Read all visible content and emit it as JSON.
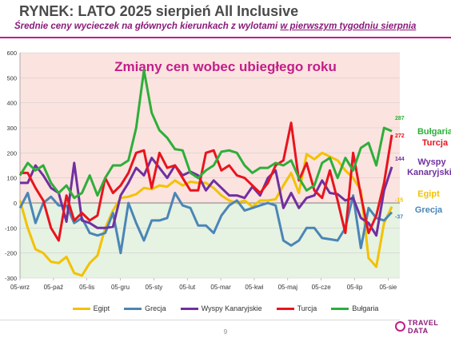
{
  "header": {
    "title": "RYNEK: LATO 2025 sierpień All Inclusive",
    "subtitle_prefix": "Średnie ceny wycieczek na głównych kierunkach z wylotami ",
    "subtitle_underlined": "w pierwszym tygodniu sierpnia"
  },
  "footer": {
    "page_number": "9",
    "logo_line1": "TRAVEL",
    "logo_line2": "DATA"
  },
  "colors": {
    "Egipt": "#f2c200",
    "Grecja": "#4a86b6",
    "Wyspy Kanaryjskie": "#7030a0",
    "Turcja": "#e8141e",
    "Bułgaria": "#2eae3a",
    "positive_bg": "#fbe3df",
    "negative_bg": "#e6f2e2",
    "title": "#c21e8a"
  },
  "chart_data": {
    "type": "line",
    "title": "Zmiany cen wobec ubiegłego roku",
    "xlabel": "",
    "ylabel": "",
    "ylim": [
      -300,
      600
    ],
    "yticks": [
      -300,
      -200,
      -100,
      0,
      100,
      200,
      300,
      400,
      500,
      600
    ],
    "x_tick_labels": [
      "05-wrz",
      "05-paź",
      "05-lis",
      "05-gru",
      "05-sty",
      "05-lut",
      "05-mar",
      "05-kwi",
      "05-maj",
      "05-cze",
      "05-lip",
      "05-sie"
    ],
    "grid": true,
    "legend_position": "bottom",
    "series": [
      {
        "name": "Egipt",
        "end_label": "-15",
        "side_label": "Egipt",
        "values": [
          10,
          -100,
          -185,
          -200,
          -235,
          -240,
          -215,
          -280,
          -290,
          -240,
          -210,
          -100,
          -30,
          20,
          25,
          35,
          60,
          55,
          70,
          65,
          90,
          70,
          85,
          80,
          80,
          60,
          30,
          10,
          0,
          10,
          -15,
          10,
          10,
          15,
          70,
          120,
          40,
          195,
          175,
          200,
          185,
          170,
          130,
          100,
          50,
          -220,
          -255,
          -80,
          -15
        ]
      },
      {
        "name": "Grecja",
        "end_label": "-37",
        "side_label": "Grecja",
        "values": [
          -20,
          40,
          -80,
          0,
          25,
          -10,
          -10,
          -80,
          -60,
          -120,
          -130,
          -120,
          -40,
          -200,
          0,
          -80,
          -150,
          -70,
          -70,
          -60,
          40,
          -10,
          -20,
          -90,
          -90,
          -120,
          -50,
          -10,
          10,
          -30,
          -20,
          -10,
          0,
          -10,
          -150,
          -170,
          -150,
          -100,
          -100,
          -140,
          -145,
          -150,
          -100,
          30,
          -180,
          -20,
          -60,
          -70,
          -37
        ]
      },
      {
        "name": "Wyspy Kanaryjskie",
        "end_label": "144",
        "side_label": "Wyspy Kanaryjskie",
        "values": [
          80,
          80,
          150,
          110,
          60,
          40,
          -75,
          160,
          -70,
          -80,
          -100,
          -100,
          -95,
          30,
          80,
          140,
          110,
          180,
          140,
          100,
          150,
          110,
          125,
          110,
          50,
          90,
          60,
          30,
          30,
          20,
          65,
          30,
          100,
          130,
          -20,
          40,
          -20,
          20,
          30,
          90,
          40,
          35,
          10,
          20,
          -60,
          -80,
          -130,
          50,
          144
        ]
      },
      {
        "name": "Turcja",
        "end_label": "272",
        "side_label": "Turcja",
        "values": [
          120,
          120,
          60,
          10,
          -100,
          -150,
          30,
          -70,
          -40,
          -70,
          -50,
          100,
          40,
          70,
          120,
          200,
          210,
          60,
          200,
          140,
          150,
          100,
          50,
          50,
          200,
          210,
          130,
          150,
          110,
          100,
          70,
          40,
          80,
          150,
          170,
          320,
          90,
          160,
          50,
          20,
          130,
          10,
          -120,
          200,
          30,
          -120,
          -50,
          80,
          272
        ]
      },
      {
        "name": "Bułgaria",
        "end_label": "287",
        "side_label": "Bułgaria",
        "values": [
          110,
          160,
          130,
          150,
          80,
          40,
          70,
          20,
          40,
          110,
          30,
          100,
          150,
          150,
          170,
          300,
          530,
          360,
          290,
          260,
          215,
          210,
          120,
          100,
          130,
          150,
          205,
          210,
          200,
          150,
          120,
          140,
          140,
          160,
          150,
          170,
          100,
          50,
          70,
          160,
          180,
          100,
          180,
          130,
          220,
          240,
          150,
          300,
          287
        ]
      }
    ]
  }
}
